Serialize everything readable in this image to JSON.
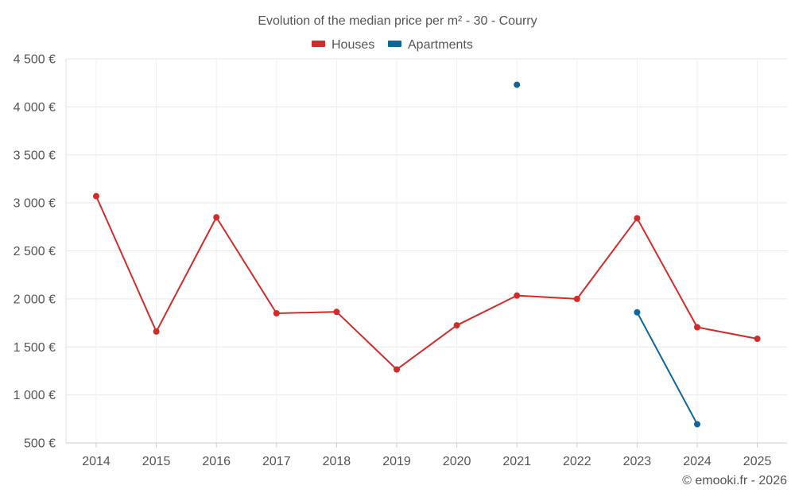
{
  "chart_data": {
    "type": "line",
    "title": "Evolution of the median price per m² - 30 - Courry",
    "categories": [
      "2014",
      "2015",
      "2016",
      "2017",
      "2018",
      "2019",
      "2020",
      "2021",
      "2022",
      "2023",
      "2024",
      "2025"
    ],
    "ylim": [
      500,
      4500
    ],
    "yticks": [
      500,
      1000,
      1500,
      2000,
      2500,
      3000,
      3500,
      4000,
      4500
    ],
    "ytick_labels": [
      "500 €",
      "1 000 €",
      "1 500 €",
      "2 000 €",
      "2 500 €",
      "3 000 €",
      "3 500 €",
      "4 000 €",
      "4 500 €"
    ],
    "grid": true,
    "legend_position": "top-center",
    "series": [
      {
        "name": "Houses",
        "color": "#d32b2b",
        "values": [
          3070,
          1660,
          2850,
          1850,
          1865,
          1265,
          1725,
          2035,
          2000,
          2840,
          1705,
          1585
        ]
      },
      {
        "name": "Apartments",
        "color": "#0f6699",
        "values": [
          null,
          null,
          null,
          null,
          null,
          null,
          null,
          4230,
          null,
          1860,
          695,
          null
        ]
      }
    ],
    "credit": "© emooki.fr - 2026"
  }
}
